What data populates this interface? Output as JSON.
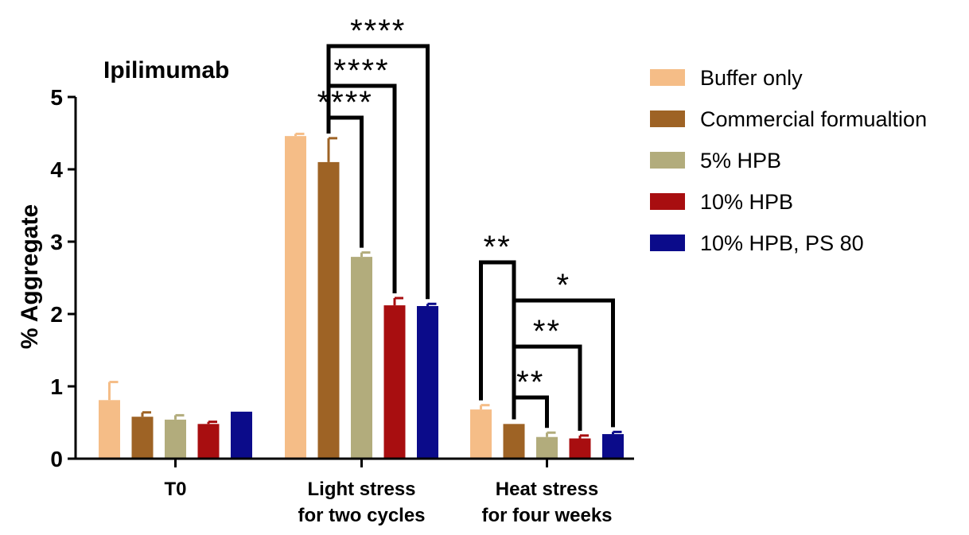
{
  "chart_data": {
    "type": "bar",
    "title": "Ipilimumab",
    "xlabel": "",
    "ylabel": "% Aggregate",
    "ylim": [
      0,
      5
    ],
    "yticks": [
      "0",
      "1",
      "2",
      "3",
      "4",
      "5"
    ],
    "categories": [
      [
        "T0"
      ],
      [
        "Light stress",
        "for two cycles"
      ],
      [
        "Heat stress",
        "for four weeks"
      ]
    ],
    "series": [
      {
        "name": "Buffer only",
        "color": "#F5BD87",
        "values": [
          0.81,
          4.46,
          0.68
        ],
        "errors": [
          0.25,
          0.03,
          0.06
        ]
      },
      {
        "name": "Commercial formualtion",
        "color": "#9E6325",
        "values": [
          0.58,
          4.1,
          0.48
        ],
        "errors": [
          0.06,
          0.33,
          0.0
        ]
      },
      {
        "name": "5% HPB",
        "color": "#B2AC7C",
        "values": [
          0.54,
          2.79,
          0.3
        ],
        "errors": [
          0.06,
          0.06,
          0.06
        ]
      },
      {
        "name": "10% HPB",
        "color": "#A80E10",
        "values": [
          0.48,
          2.12,
          0.28
        ],
        "errors": [
          0.03,
          0.1,
          0.04
        ]
      },
      {
        "name": "10% HPB, PS 80",
        "color": "#0B0B8A",
        "values": [
          0.65,
          2.11,
          0.34
        ],
        "errors": [
          0.0,
          0.03,
          0.03
        ]
      }
    ],
    "legend_position": "right",
    "significance": [
      {
        "category": 1,
        "from": 1,
        "to": 2,
        "label": "****"
      },
      {
        "category": 1,
        "from": 1,
        "to": 3,
        "label": "****"
      },
      {
        "category": 1,
        "from": 1,
        "to": 4,
        "label": "****"
      },
      {
        "category": 2,
        "from": 0,
        "to": 1,
        "label": "**"
      },
      {
        "category": 2,
        "from": 1,
        "to": 2,
        "label": "**"
      },
      {
        "category": 2,
        "from": 1,
        "to": 3,
        "label": "**"
      },
      {
        "category": 2,
        "from": 1,
        "to": 4,
        "label": "*"
      }
    ]
  }
}
